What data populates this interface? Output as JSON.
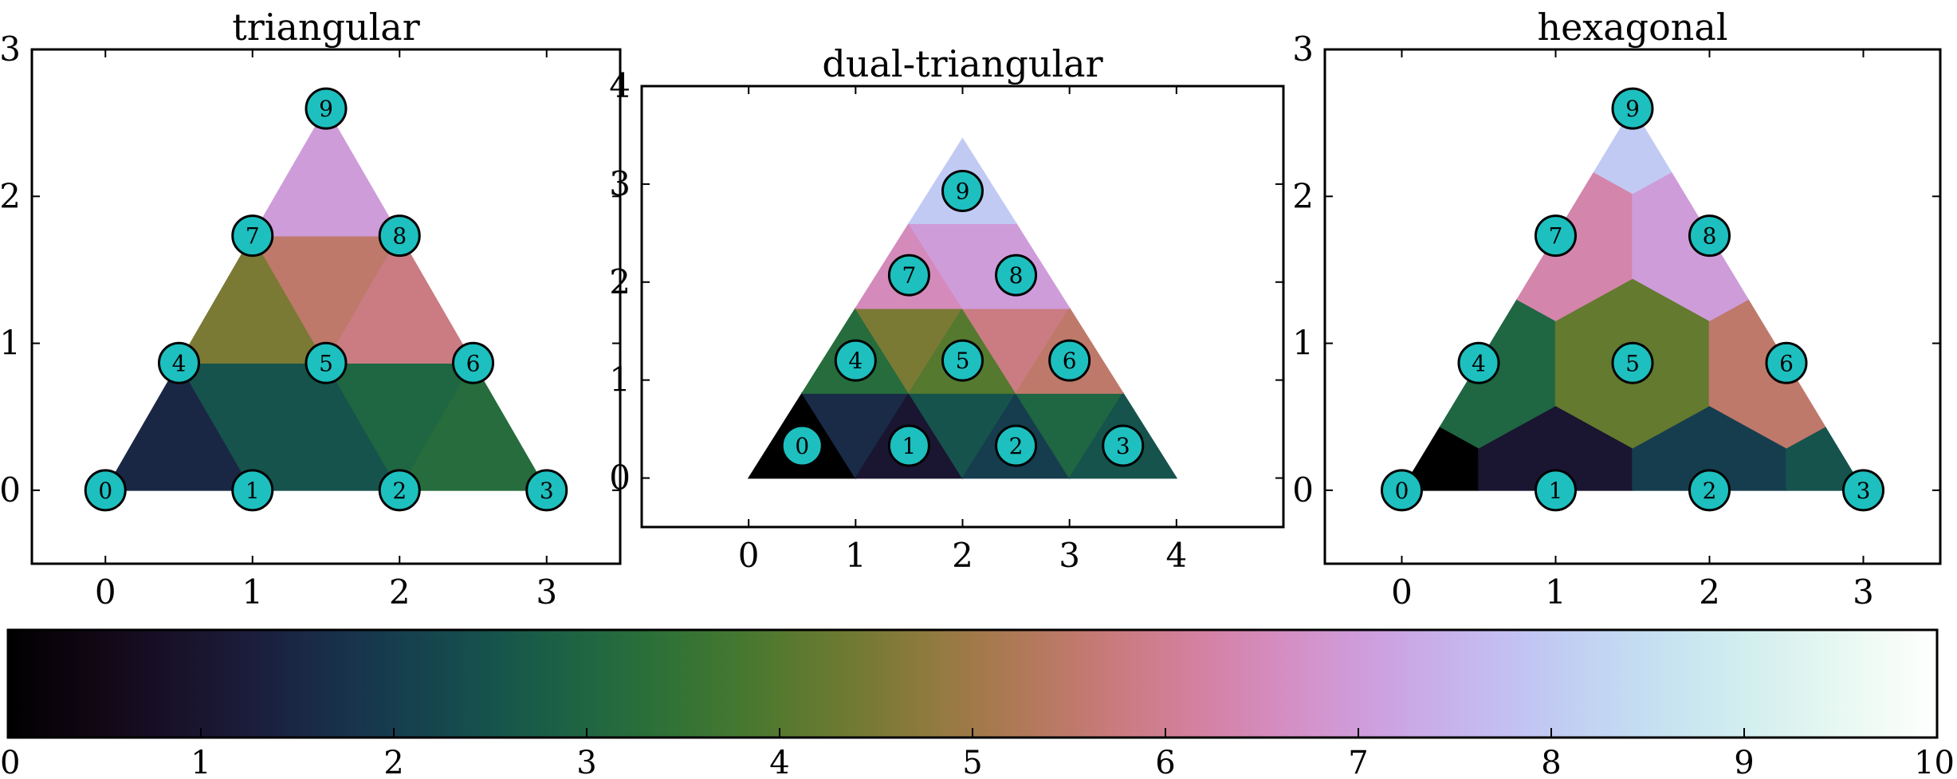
{
  "chart_data": [
    {
      "type": "heatmap",
      "title": "triangular",
      "xlim": [
        -0.5,
        3.5
      ],
      "ylim": [
        -0.5,
        3.0
      ],
      "xticks": [
        "0",
        "1",
        "2",
        "3"
      ],
      "yticks": [
        "0",
        "1",
        "2",
        "3"
      ],
      "nodes": [
        {
          "id": "0",
          "x": 0.0,
          "y": 0.0
        },
        {
          "id": "1",
          "x": 1.0,
          "y": 0.0
        },
        {
          "id": "2",
          "x": 2.0,
          "y": 0.0
        },
        {
          "id": "3",
          "x": 3.0,
          "y": 0.0
        },
        {
          "id": "4",
          "x": 0.5,
          "y": 0.866
        },
        {
          "id": "5",
          "x": 1.5,
          "y": 0.866
        },
        {
          "id": "6",
          "x": 2.5,
          "y": 0.866
        },
        {
          "id": "7",
          "x": 1.0,
          "y": 1.732
        },
        {
          "id": "8",
          "x": 2.0,
          "y": 1.732
        },
        {
          "id": "9",
          "x": 1.5,
          "y": 2.598
        }
      ],
      "cells": [
        {
          "verts": [
            [
              0,
              0
            ],
            [
              1,
              0
            ],
            [
              0.5,
              0.866
            ]
          ],
          "value": 1.5
        },
        {
          "verts": [
            [
              1,
              0
            ],
            [
              1.5,
              0.866
            ],
            [
              0.5,
              0.866
            ]
          ],
          "value": 2.5
        },
        {
          "verts": [
            [
              1,
              0
            ],
            [
              2,
              0
            ],
            [
              1.5,
              0.866
            ]
          ],
          "value": 2.5
        },
        {
          "verts": [
            [
              2,
              0
            ],
            [
              2.5,
              0.866
            ],
            [
              1.5,
              0.866
            ]
          ],
          "value": 3.0
        },
        {
          "verts": [
            [
              2,
              0
            ],
            [
              3,
              0
            ],
            [
              2.5,
              0.866
            ]
          ],
          "value": 3.2
        },
        {
          "verts": [
            [
              0.5,
              0.866
            ],
            [
              1.5,
              0.866
            ],
            [
              1,
              1.732
            ]
          ],
          "value": 4.5
        },
        {
          "verts": [
            [
              1.5,
              0.866
            ],
            [
              2,
              1.732
            ],
            [
              1,
              1.732
            ]
          ],
          "value": 5.5
        },
        {
          "verts": [
            [
              1.5,
              0.866
            ],
            [
              2.5,
              0.866
            ],
            [
              2,
              1.732
            ]
          ],
          "value": 5.8
        },
        {
          "verts": [
            [
              1,
              1.732
            ],
            [
              2,
              1.732
            ],
            [
              1.5,
              2.598
            ]
          ],
          "value": 7.0
        }
      ]
    },
    {
      "type": "heatmap",
      "title": "dual-triangular",
      "xlim": [
        -1.0,
        5.0
      ],
      "ylim": [
        -0.5,
        4.0
      ],
      "xticks": [
        "0",
        "1",
        "2",
        "3",
        "4"
      ],
      "yticks": [
        "0",
        "1",
        "2",
        "3",
        "4"
      ],
      "nodes": [
        {
          "id": "0",
          "x": 0.5,
          "y": 0.33
        },
        {
          "id": "1",
          "x": 1.5,
          "y": 0.33
        },
        {
          "id": "2",
          "x": 2.5,
          "y": 0.33
        },
        {
          "id": "3",
          "x": 3.5,
          "y": 0.33
        },
        {
          "id": "4",
          "x": 1.0,
          "y": 1.2
        },
        {
          "id": "5",
          "x": 2.0,
          "y": 1.2
        },
        {
          "id": "6",
          "x": 3.0,
          "y": 1.2
        },
        {
          "id": "7",
          "x": 1.5,
          "y": 2.07
        },
        {
          "id": "8",
          "x": 2.5,
          "y": 2.07
        },
        {
          "id": "9",
          "x": 2.0,
          "y": 2.93
        }
      ],
      "cells": [
        {
          "verts": [
            [
              0,
              0
            ],
            [
              1,
              0
            ],
            [
              0.5,
              0.866
            ]
          ],
          "value": 0.0
        },
        {
          "verts": [
            [
              1,
              0
            ],
            [
              1.5,
              0.866
            ],
            [
              0.5,
              0.866
            ]
          ],
          "value": 1.6
        },
        {
          "verts": [
            [
              1,
              0
            ],
            [
              2,
              0
            ],
            [
              1.5,
              0.866
            ]
          ],
          "value": 1.0
        },
        {
          "verts": [
            [
              2,
              0
            ],
            [
              2.5,
              0.866
            ],
            [
              1.5,
              0.866
            ]
          ],
          "value": 2.5
        },
        {
          "verts": [
            [
              2,
              0
            ],
            [
              3,
              0
            ],
            [
              2.5,
              0.866
            ]
          ],
          "value": 2.0
        },
        {
          "verts": [
            [
              3,
              0
            ],
            [
              3.5,
              0.866
            ],
            [
              2.5,
              0.866
            ]
          ],
          "value": 3.0
        },
        {
          "verts": [
            [
              3,
              0
            ],
            [
              4,
              0
            ],
            [
              3.5,
              0.866
            ]
          ],
          "value": 2.5
        },
        {
          "verts": [
            [
              0.5,
              0.866
            ],
            [
              1.5,
              0.866
            ],
            [
              1,
              1.732
            ]
          ],
          "value": 3.2
        },
        {
          "verts": [
            [
              1.5,
              0.866
            ],
            [
              2,
              1.732
            ],
            [
              1,
              1.732
            ]
          ],
          "value": 4.5
        },
        {
          "verts": [
            [
              1.5,
              0.866
            ],
            [
              2.5,
              0.866
            ],
            [
              2,
              1.732
            ]
          ],
          "value": 4.0
        },
        {
          "verts": [
            [
              2.5,
              0.866
            ],
            [
              3,
              1.732
            ],
            [
              2,
              1.732
            ]
          ],
          "value": 5.8
        },
        {
          "verts": [
            [
              2.5,
              0.866
            ],
            [
              3.5,
              0.866
            ],
            [
              3,
              1.732
            ]
          ],
          "value": 5.5
        },
        {
          "verts": [
            [
              1,
              1.732
            ],
            [
              2,
              1.732
            ],
            [
              1.5,
              2.598
            ]
          ],
          "value": 6.5
        },
        {
          "verts": [
            [
              2,
              1.732
            ],
            [
              2.5,
              2.598
            ],
            [
              1.5,
              2.598
            ]
          ],
          "value": 7.0
        },
        {
          "verts": [
            [
              2,
              1.732
            ],
            [
              3,
              1.732
            ],
            [
              2.5,
              2.598
            ]
          ],
          "value": 7.0
        },
        {
          "verts": [
            [
              1.5,
              2.598
            ],
            [
              2.5,
              2.598
            ],
            [
              2,
              3.464
            ]
          ],
          "value": 8.0
        }
      ]
    },
    {
      "type": "heatmap",
      "title": "hexagonal",
      "xlim": [
        -0.5,
        3.5
      ],
      "ylim": [
        -0.5,
        3.0
      ],
      "xticks": [
        "0",
        "1",
        "2",
        "3"
      ],
      "yticks": [
        "0",
        "1",
        "2",
        "3"
      ],
      "nodes": [
        {
          "id": "0",
          "x": 0.0,
          "y": 0.0
        },
        {
          "id": "1",
          "x": 1.0,
          "y": 0.0
        },
        {
          "id": "2",
          "x": 2.0,
          "y": 0.0
        },
        {
          "id": "3",
          "x": 3.0,
          "y": 0.0
        },
        {
          "id": "4",
          "x": 0.5,
          "y": 0.866
        },
        {
          "id": "5",
          "x": 1.5,
          "y": 0.866
        },
        {
          "id": "6",
          "x": 2.5,
          "y": 0.866
        },
        {
          "id": "7",
          "x": 1.0,
          "y": 1.732
        },
        {
          "id": "8",
          "x": 2.0,
          "y": 1.732
        },
        {
          "id": "9",
          "x": 1.5,
          "y": 2.598
        }
      ],
      "cells": [
        {
          "verts": [
            [
              0,
              0
            ],
            [
              0.5,
              0
            ],
            [
              0.5,
              0.289
            ],
            [
              0.25,
              0.433
            ]
          ],
          "value": 0.0
        },
        {
          "verts": [
            [
              0.5,
              0
            ],
            [
              1.5,
              0
            ],
            [
              1.5,
              0.289
            ],
            [
              1,
              0.577
            ],
            [
              0.5,
              0.289
            ]
          ],
          "value": 1.0
        },
        {
          "verts": [
            [
              1.5,
              0
            ],
            [
              2.5,
              0
            ],
            [
              2.5,
              0.289
            ],
            [
              2,
              0.577
            ],
            [
              1.5,
              0.289
            ]
          ],
          "value": 2.0
        },
        {
          "verts": [
            [
              2.5,
              0
            ],
            [
              3,
              0
            ],
            [
              2.75,
              0.433
            ],
            [
              2.5,
              0.289
            ]
          ],
          "value": 2.5
        },
        {
          "verts": [
            [
              0.25,
              0.433
            ],
            [
              0.5,
              0.289
            ],
            [
              1,
              0.577
            ],
            [
              1,
              1.155
            ],
            [
              0.75,
              1.299
            ]
          ],
          "value": 3.0
        },
        {
          "verts": [
            [
              1,
              0.577
            ],
            [
              1.5,
              0.289
            ],
            [
              2,
              0.577
            ],
            [
              2,
              1.155
            ],
            [
              1.5,
              1.443
            ],
            [
              1,
              1.155
            ]
          ],
          "value": 4.2
        },
        {
          "verts": [
            [
              2,
              0.577
            ],
            [
              2.5,
              0.289
            ],
            [
              2.75,
              0.433
            ],
            [
              2.25,
              1.299
            ],
            [
              2,
              1.155
            ]
          ],
          "value": 5.5
        },
        {
          "verts": [
            [
              0.75,
              1.299
            ],
            [
              1,
              1.155
            ],
            [
              1.5,
              1.443
            ],
            [
              1.5,
              2.021
            ],
            [
              1.25,
              2.165
            ]
          ],
          "value": 6.3
        },
        {
          "verts": [
            [
              1.5,
              1.443
            ],
            [
              2,
              1.155
            ],
            [
              2.25,
              1.299
            ],
            [
              1.75,
              2.165
            ],
            [
              1.5,
              2.021
            ]
          ],
          "value": 7.0
        },
        {
          "verts": [
            [
              1.25,
              2.165
            ],
            [
              1.5,
              2.021
            ],
            [
              1.75,
              2.165
            ],
            [
              1.5,
              2.598
            ]
          ],
          "value": 8.0
        }
      ]
    }
  ],
  "colorbar": {
    "min": 0,
    "max": 10,
    "ticks": [
      "0",
      "1",
      "2",
      "3",
      "4",
      "5",
      "6",
      "7",
      "8",
      "9",
      "10"
    ],
    "colormap": "cubehelix"
  },
  "colors": {
    "node_fill": "#1ebfbf",
    "node_stroke": "#000000",
    "axes": "#000000"
  }
}
